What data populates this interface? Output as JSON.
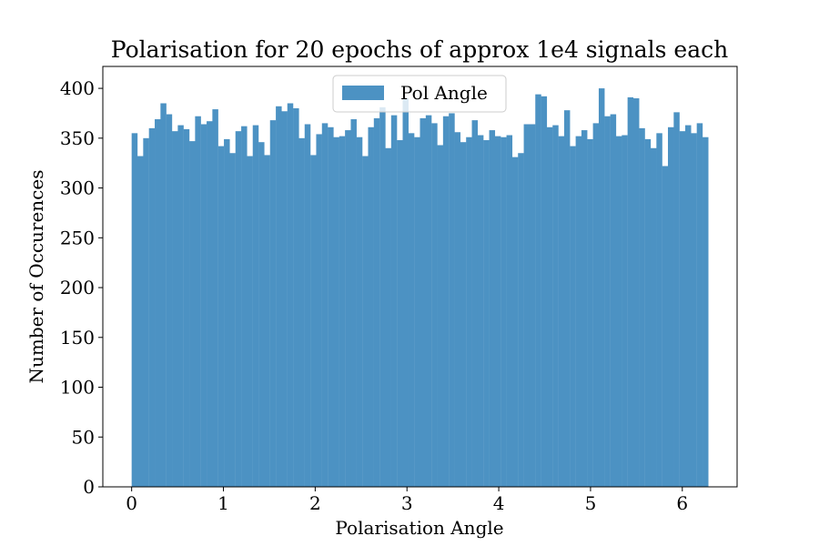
{
  "chart_data": {
    "type": "bar",
    "title": "Polarisation for 20 epochs of approx 1e4 signals each",
    "xlabel": "Polarisation Angle",
    "ylabel": "Number of Occurences",
    "xlim": [
      -0.314,
      6.597
    ],
    "ylim": [
      0,
      422
    ],
    "xticks": [
      0,
      1,
      2,
      3,
      4,
      5,
      6
    ],
    "yticks": [
      0,
      50,
      100,
      150,
      200,
      250,
      300,
      350,
      400
    ],
    "bin_range": [
      0,
      6.2832
    ],
    "bar_color": "#4c92c3",
    "legend": {
      "label": "Pol Angle",
      "position": "upper center"
    },
    "series": [
      {
        "name": "Pol Angle",
        "values": [
          355,
          332,
          350,
          360,
          369,
          385,
          374,
          357,
          363,
          359,
          347,
          372,
          364,
          367,
          379,
          342,
          349,
          335,
          357,
          362,
          332,
          363,
          346,
          333,
          368,
          382,
          377,
          385,
          380,
          350,
          364,
          333,
          354,
          365,
          361,
          351,
          352,
          358,
          369,
          351,
          332,
          361,
          370,
          381,
          340,
          373,
          348,
          390,
          355,
          351,
          370,
          373,
          365,
          343,
          372,
          375,
          356,
          346,
          351,
          368,
          353,
          348,
          358,
          352,
          351,
          353,
          331,
          335,
          364,
          364,
          394,
          392,
          361,
          363,
          352,
          378,
          342,
          352,
          358,
          349,
          365,
          400,
          372,
          374,
          352,
          353,
          391,
          390,
          360,
          349,
          340,
          355,
          322,
          361,
          376,
          357,
          363,
          355,
          365,
          351
        ]
      }
    ]
  }
}
